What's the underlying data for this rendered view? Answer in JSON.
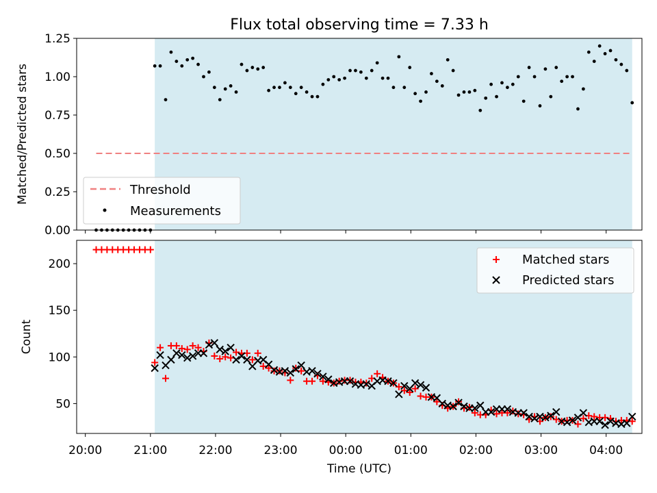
{
  "chart_data": [
    {
      "type": "scatter",
      "title": "Flux total observing time = 7.33 h",
      "xlabel": "",
      "ylabel": "Matched/Predicted stars",
      "ylim": [
        0,
        1.25
      ],
      "yticks": [
        "0.00",
        "0.25",
        "0.50",
        "0.75",
        "1.00",
        "1.25"
      ],
      "observing_window": [
        "21:04",
        "04:24"
      ],
      "threshold": 0.5,
      "legend_position": "lower-left",
      "colors": {
        "threshold": "#f08080",
        "measurements": "#000000",
        "window": "#add8e6"
      },
      "legend": {
        "threshold": "Threshold",
        "measurements": "Measurements"
      },
      "pre_window_zeros": [
        "20:10",
        "20:15",
        "20:20",
        "20:25",
        "20:30",
        "20:35",
        "20:40",
        "20:45",
        "20:50",
        "20:55",
        "21:00"
      ],
      "measurements": {
        "x": [
          "21:04",
          "21:09",
          "21:14",
          "21:19",
          "21:24",
          "21:29",
          "21:34",
          "21:39",
          "21:44",
          "21:49",
          "21:54",
          "21:59",
          "22:04",
          "22:09",
          "22:14",
          "22:19",
          "22:24",
          "22:29",
          "22:34",
          "22:39",
          "22:44",
          "22:49",
          "22:54",
          "22:59",
          "23:04",
          "23:09",
          "23:14",
          "23:19",
          "23:24",
          "23:29",
          "23:34",
          "23:39",
          "23:44",
          "23:49",
          "23:54",
          "23:59",
          "00:04",
          "00:09",
          "00:14",
          "00:19",
          "00:24",
          "00:29",
          "00:34",
          "00:39",
          "00:44",
          "00:49",
          "00:54",
          "00:59",
          "01:04",
          "01:09",
          "01:14",
          "01:19",
          "01:24",
          "01:29",
          "01:34",
          "01:39",
          "01:44",
          "01:49",
          "01:54",
          "01:59",
          "02:04",
          "02:09",
          "02:14",
          "02:19",
          "02:24",
          "02:29",
          "02:34",
          "02:39",
          "02:44",
          "02:49",
          "02:54",
          "02:59",
          "03:04",
          "03:09",
          "03:14",
          "03:19",
          "03:24",
          "03:29",
          "03:34",
          "03:39",
          "03:44",
          "03:49",
          "03:54",
          "03:59",
          "04:04",
          "04:09",
          "04:14",
          "04:19",
          "04:24"
        ],
        "y": [
          1.07,
          1.07,
          0.85,
          1.16,
          1.1,
          1.07,
          1.11,
          1.12,
          1.08,
          1.0,
          1.03,
          0.93,
          0.85,
          0.92,
          0.94,
          0.9,
          1.08,
          1.04,
          1.06,
          1.05,
          1.06,
          0.91,
          0.93,
          0.93,
          0.96,
          0.93,
          0.89,
          0.93,
          0.9,
          0.87,
          0.87,
          0.95,
          0.98,
          1.0,
          0.98,
          0.99,
          1.04,
          1.04,
          1.03,
          0.99,
          1.04,
          1.09,
          0.99,
          0.99,
          0.93,
          1.13,
          0.93,
          1.06,
          0.89,
          0.84,
          0.9,
          1.02,
          0.97,
          0.94,
          1.11,
          1.04,
          0.88,
          0.9,
          0.9,
          0.91,
          0.78,
          0.86,
          0.95,
          0.87,
          0.96,
          0.93,
          0.95,
          1.0,
          0.84,
          1.06,
          1.0,
          0.81,
          1.05,
          0.87,
          1.06,
          0.97,
          1.0,
          1.0,
          0.79,
          0.92,
          1.16,
          1.1,
          1.2,
          1.15,
          1.17,
          1.11,
          1.08,
          1.04,
          0.83
        ]
      }
    },
    {
      "type": "scatter",
      "title": "",
      "xlabel": "Time (UTC)",
      "ylabel": "Count",
      "ylim": [
        18,
        225
      ],
      "yticks": [
        "50",
        "100",
        "150",
        "200"
      ],
      "xticks": [
        "20:00",
        "21:00",
        "22:00",
        "23:00",
        "00:00",
        "01:00",
        "02:00",
        "03:00",
        "04:00"
      ],
      "legend_position": "upper-right",
      "colors": {
        "matched": "#ff0000",
        "predicted": "#000000"
      },
      "legend": {
        "matched": "Matched stars",
        "predicted": "Predicted stars"
      },
      "pre_window_matched": {
        "x": [
          "20:10",
          "20:15",
          "20:20",
          "20:25",
          "20:30",
          "20:35",
          "20:40",
          "20:45",
          "20:50",
          "20:55",
          "21:00"
        ],
        "y": [
          215,
          215,
          215,
          215,
          215,
          215,
          215,
          215,
          215,
          215,
          215
        ]
      },
      "x": [
        "21:04",
        "21:09",
        "21:14",
        "21:19",
        "21:24",
        "21:29",
        "21:34",
        "21:39",
        "21:44",
        "21:49",
        "21:54",
        "21:59",
        "22:04",
        "22:09",
        "22:14",
        "22:19",
        "22:24",
        "22:29",
        "22:34",
        "22:39",
        "22:44",
        "22:49",
        "22:54",
        "22:59",
        "23:04",
        "23:09",
        "23:14",
        "23:19",
        "23:24",
        "23:29",
        "23:34",
        "23:39",
        "23:44",
        "23:49",
        "23:54",
        "23:59",
        "00:04",
        "00:09",
        "00:14",
        "00:19",
        "00:24",
        "00:29",
        "00:34",
        "00:39",
        "00:44",
        "00:49",
        "00:54",
        "00:59",
        "01:04",
        "01:09",
        "01:14",
        "01:19",
        "01:24",
        "01:29",
        "01:34",
        "01:39",
        "01:44",
        "01:49",
        "01:54",
        "01:59",
        "02:04",
        "02:09",
        "02:14",
        "02:19",
        "02:24",
        "02:29",
        "02:34",
        "02:39",
        "02:44",
        "02:49",
        "02:54",
        "02:59",
        "03:04",
        "03:09",
        "03:14",
        "03:19",
        "03:24",
        "03:29",
        "03:34",
        "03:39",
        "03:44",
        "03:49",
        "03:54",
        "03:59",
        "04:04",
        "04:09",
        "04:14",
        "04:19",
        "04:24"
      ],
      "series": [
        {
          "name": "Matched stars",
          "values": [
            94,
            110,
            77,
            112,
            112,
            109,
            108,
            112,
            110,
            106,
            115,
            101,
            98,
            100,
            99,
            105,
            104,
            104,
            97,
            104,
            90,
            88,
            85,
            85,
            83,
            75,
            88,
            85,
            74,
            74,
            80,
            74,
            73,
            72,
            74,
            75,
            75,
            73,
            73,
            72,
            77,
            82,
            78,
            74,
            72,
            68,
            64,
            62,
            66,
            58,
            57,
            57,
            52,
            48,
            45,
            47,
            52,
            45,
            46,
            40,
            38,
            38,
            43,
            39,
            40,
            40,
            42,
            39,
            38,
            33,
            36,
            31,
            35,
            36,
            33,
            31,
            32,
            32,
            28,
            34,
            37,
            36,
            35,
            35,
            34,
            31,
            32,
            32,
            31
          ]
        },
        {
          "name": "Predicted stars",
          "values": [
            88,
            102,
            91,
            97,
            104,
            102,
            99,
            101,
            104,
            104,
            113,
            115,
            108,
            106,
            110,
            97,
            101,
            97,
            90,
            96,
            97,
            92,
            86,
            84,
            85,
            83,
            87,
            91,
            84,
            85,
            82,
            79,
            76,
            72,
            73,
            74,
            74,
            71,
            70,
            71,
            69,
            74,
            75,
            74,
            72,
            60,
            69,
            66,
            72,
            70,
            67,
            57,
            56,
            50,
            48,
            47,
            51,
            47,
            45,
            45,
            48,
            41,
            41,
            44,
            44,
            44,
            41,
            40,
            40,
            36,
            34,
            36,
            35,
            37,
            41,
            31,
            30,
            32,
            35,
            40,
            30,
            31,
            31,
            27,
            31,
            29,
            28,
            29,
            36
          ]
        }
      ]
    }
  ]
}
